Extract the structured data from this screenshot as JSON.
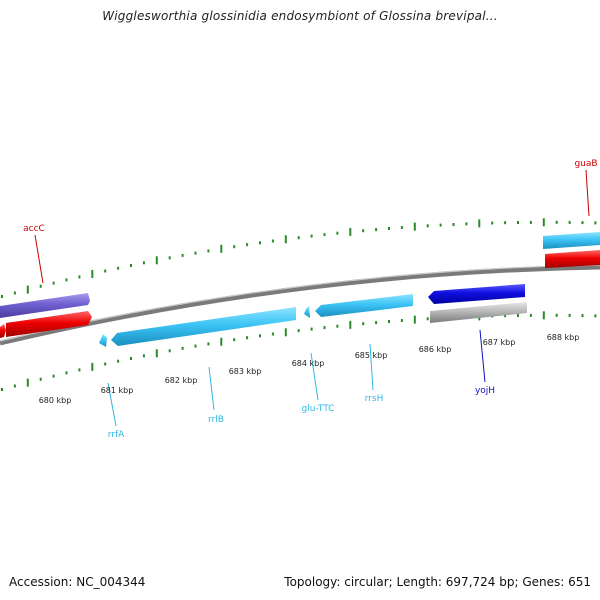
{
  "title": "Wigglesworthia glossinidia endosymbiont of Glossina brevipal...",
  "footer": {
    "accession": "Accession: NC_004344",
    "summary": "Topology: circular; Length: 697,724 bp; Genes: 651"
  },
  "tick_labels": [
    {
      "label": "680 kbp",
      "kbp": 680
    },
    {
      "label": "681 kbp",
      "kbp": 681
    },
    {
      "label": "682 kbp",
      "kbp": 682
    },
    {
      "label": "683 kbp",
      "kbp": 683
    },
    {
      "label": "684 kbp",
      "kbp": 684
    },
    {
      "label": "685 kbp",
      "kbp": 685
    },
    {
      "label": "686 kbp",
      "kbp": 686
    },
    {
      "label": "687 kbp",
      "kbp": 687
    },
    {
      "label": "688 kbp",
      "kbp": 688
    }
  ],
  "genes": [
    {
      "name": "accC",
      "strand": "forward",
      "color": "#7060d0",
      "labelColor": "#cc0000"
    },
    {
      "name": "guaB",
      "strand": "forward",
      "color": "#30c0f0",
      "labelColor": "#cc0000"
    },
    {
      "name": "rrfA",
      "strand": "reverse",
      "color": "#40c8f8",
      "labelColor": "#30b8e0"
    },
    {
      "name": "rrlB",
      "strand": "reverse",
      "color": "#40c8f8",
      "labelColor": "#30b8e0"
    },
    {
      "name": "glu-TTC",
      "strand": "reverse",
      "color": "#40c8f8",
      "labelColor": "#30b8e0"
    },
    {
      "name": "rrsH",
      "strand": "reverse",
      "color": "#40c8f8",
      "labelColor": "#30b8e0"
    },
    {
      "name": "yojH",
      "strand": "reverse",
      "color": "#1010e0",
      "labelColor": "#1010c0"
    }
  ],
  "colors": {
    "backbone": "#808080",
    "ticks": "#2a8a2a",
    "red_features": "#ee0000",
    "grey_feature": "#b0b0b0"
  }
}
